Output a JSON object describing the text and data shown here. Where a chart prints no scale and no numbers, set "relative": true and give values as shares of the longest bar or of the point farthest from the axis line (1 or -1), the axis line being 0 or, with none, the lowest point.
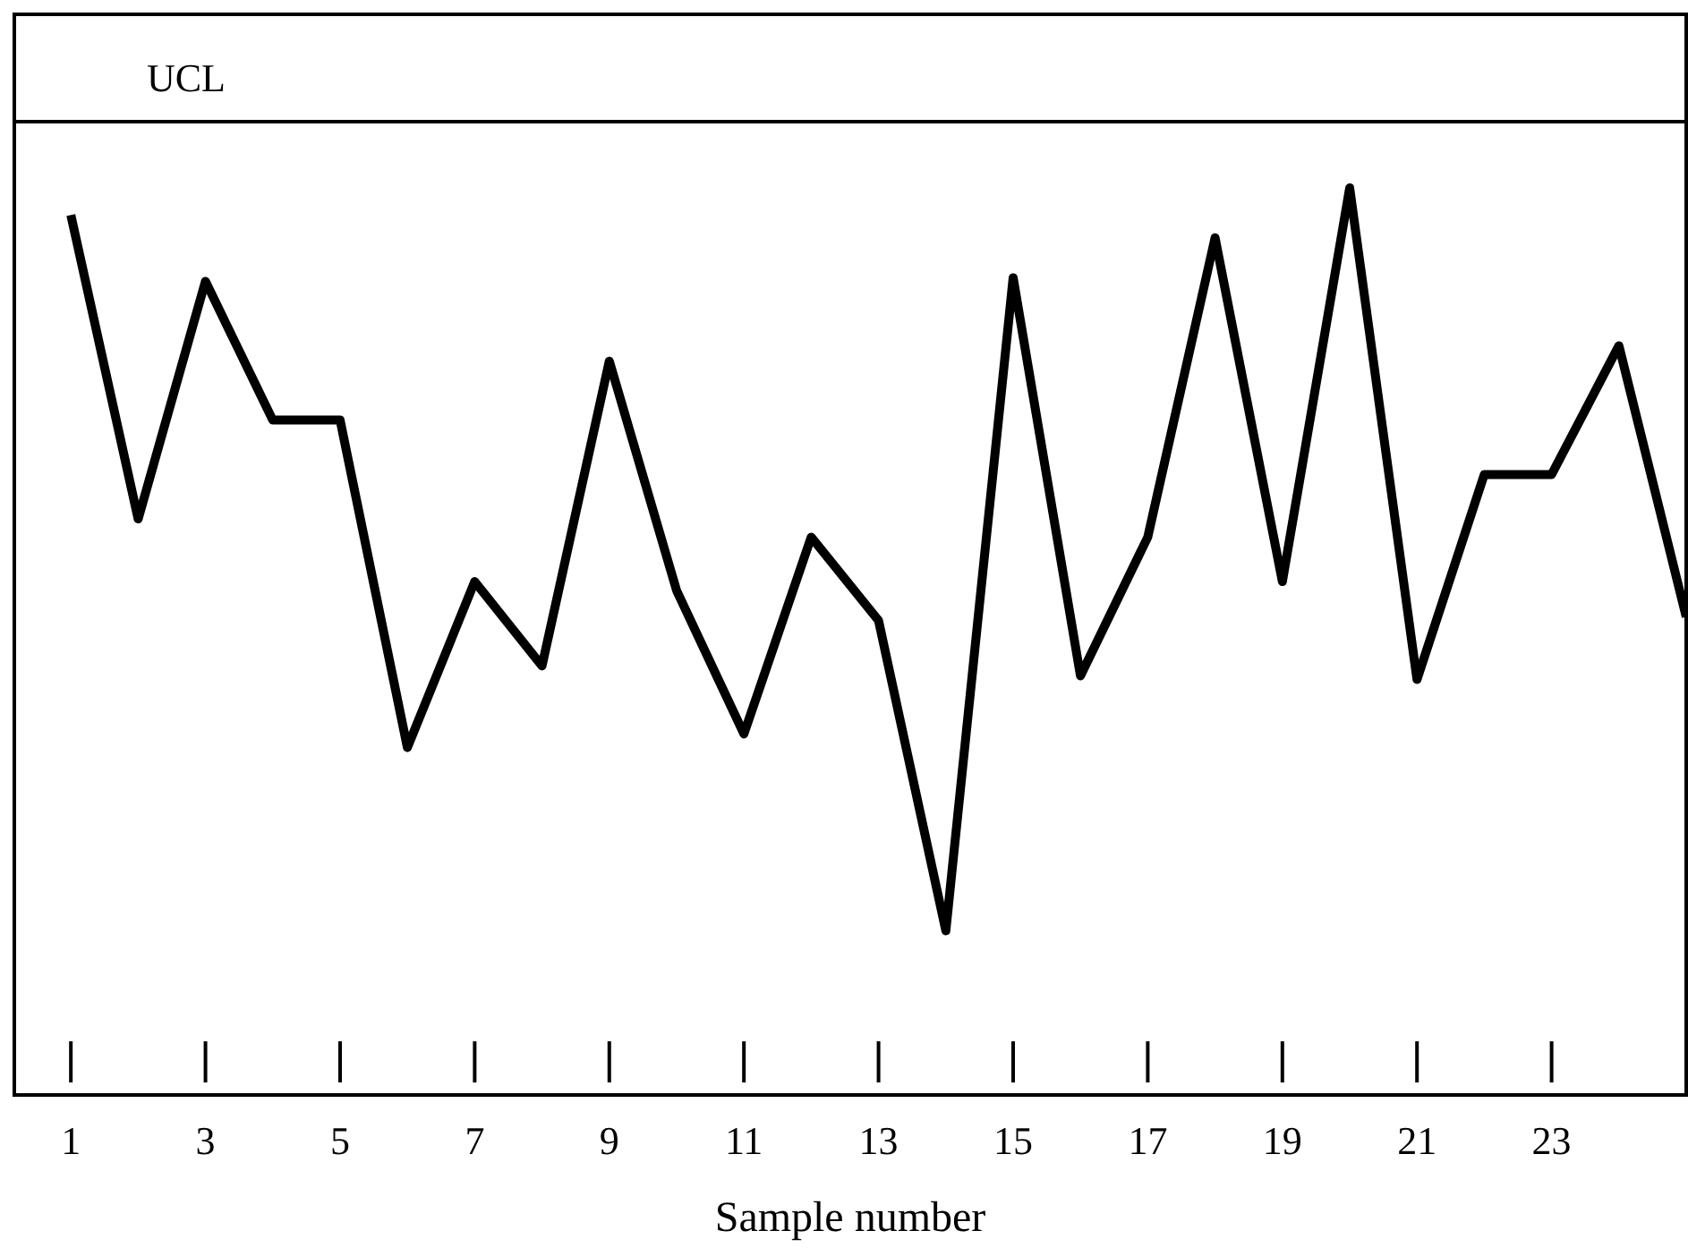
{
  "chart_data": {
    "type": "line",
    "relative": true,
    "xlabel": "Sample number",
    "x": [
      1,
      2,
      3,
      4,
      5,
      6,
      7,
      8,
      9,
      10,
      11,
      12,
      13,
      14,
      15,
      16,
      17,
      18,
      19,
      20,
      21,
      22,
      23,
      24,
      25
    ],
    "series": [
      {
        "color": "#000000",
        "values": [
          0.97,
          0.635,
          0.897,
          0.744,
          0.744,
          0.383,
          0.566,
          0.473,
          0.809,
          0.556,
          0.398,
          0.615,
          0.523,
          0.181,
          0.901,
          0.462,
          0.615,
          0.945,
          0.566,
          1,
          0.458,
          0.684,
          0.684,
          0.826,
          0.527
        ]
      }
    ],
    "xlim": [
      0.16,
      25
    ],
    "xticks": [
      1,
      3,
      5,
      7,
      9,
      11,
      13,
      15,
      17,
      19,
      21,
      23
    ],
    "ref_lines": [
      {
        "axis": "y",
        "value": 1.073,
        "label": "UCL"
      }
    ],
    "grid": false,
    "line_style": "solid"
  }
}
